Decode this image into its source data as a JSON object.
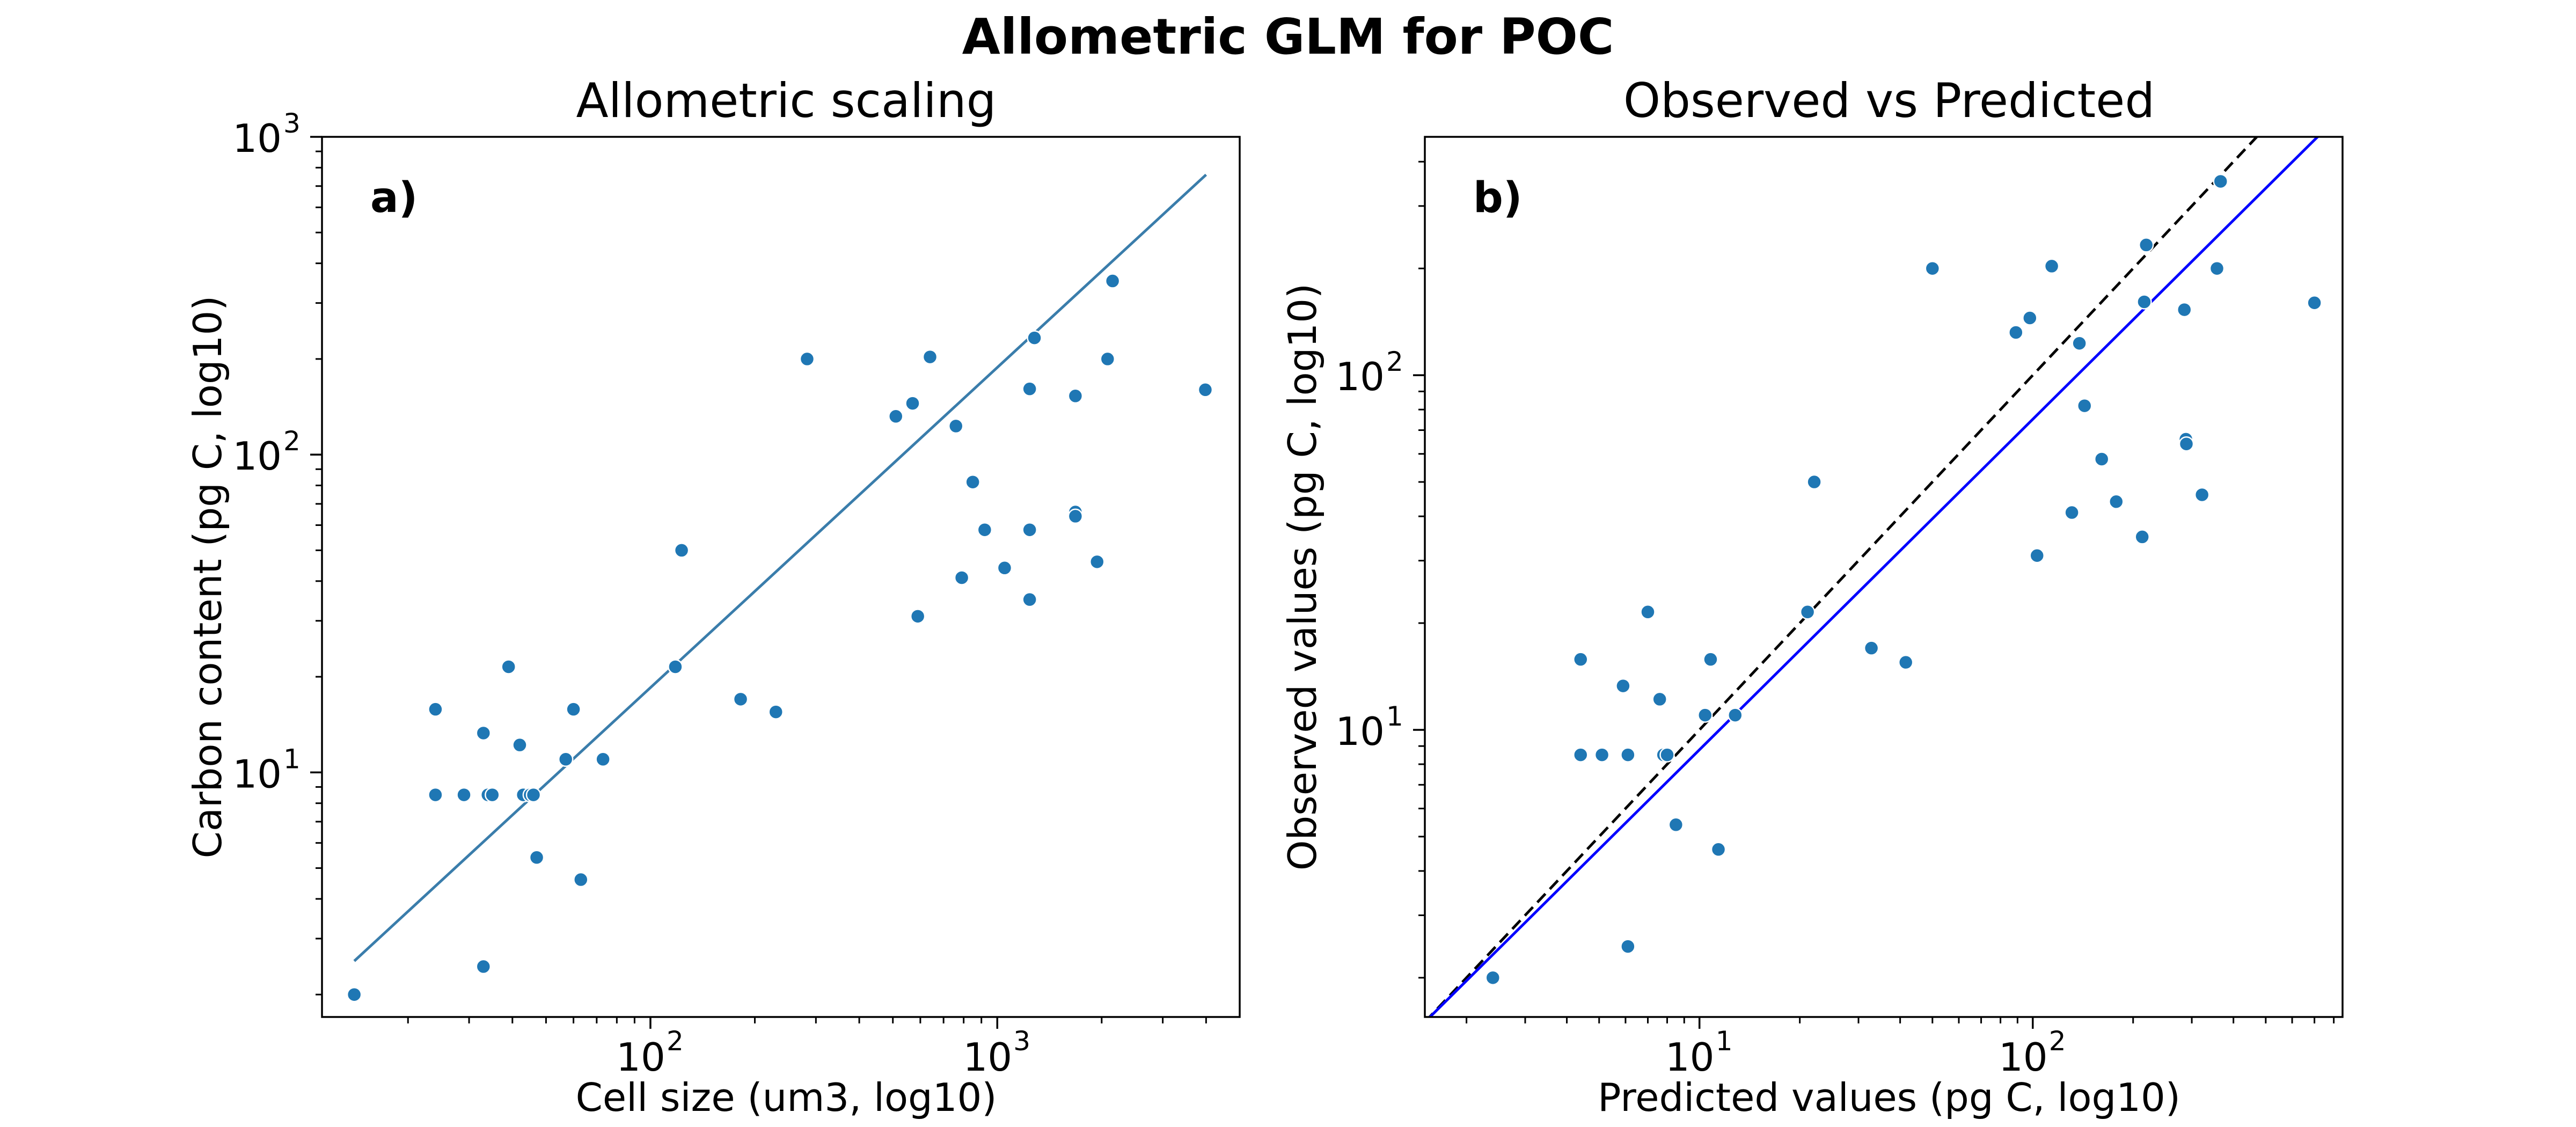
{
  "figure": {
    "suptitle": "Allometric GLM for POC"
  },
  "colors": {
    "points": "#1f77b4",
    "fit_line": "#3a7dab",
    "one_to_one": "#000000",
    "regression": "#0000ff"
  },
  "chart_data": [
    {
      "panel_label": "a)",
      "type": "scatter",
      "title": "Allometric scaling",
      "xlabel": "Cell size (um3, log10)",
      "ylabel": "Carbon content (pg C, log10)",
      "xscale": "log",
      "yscale": "log",
      "xlim": [
        11.3,
        5000
      ],
      "ylim": [
        1.7,
        1000
      ],
      "xticks": [
        {
          "v": 100,
          "label": "10",
          "exp": "2"
        },
        {
          "v": 1000,
          "label": "10",
          "exp": "3"
        }
      ],
      "yticks": [
        {
          "v": 10,
          "label": "10",
          "exp": "1"
        },
        {
          "v": 100,
          "label": "10",
          "exp": "2"
        },
        {
          "v": 1000,
          "label": "10",
          "exp": "3"
        }
      ],
      "grid": false,
      "series": [
        {
          "kind": "points",
          "x": [
            14,
            24,
            24,
            29,
            33,
            33,
            34,
            35,
            39,
            42,
            43,
            45,
            46,
            47,
            57,
            60,
            63,
            73,
            118,
            123,
            182,
            230,
            283,
            510,
            570,
            590,
            640,
            760,
            790,
            850,
            920,
            1050,
            1240,
            1240,
            1240,
            1280,
            1680,
            1680,
            1680,
            1940,
            2080,
            2150,
            3980
          ],
          "y": [
            2,
            8.5,
            15.8,
            8.5,
            13.3,
            2.45,
            8.5,
            8.5,
            21.5,
            12.2,
            8.5,
            8.5,
            8.5,
            5.4,
            11,
            15.8,
            4.6,
            11,
            21.5,
            50,
            17,
            15.5,
            200,
            132,
            145,
            31,
            203,
            123,
            41,
            82,
            58,
            44,
            58,
            35,
            161,
            233,
            66,
            64,
            153,
            46,
            200,
            352,
            160
          ]
        },
        {
          "kind": "line",
          "x": [
            14,
            4000
          ],
          "y": [
            2.55,
            760
          ]
        }
      ]
    },
    {
      "panel_label": "b)",
      "type": "scatter",
      "title": "Observed vs Predicted",
      "xlabel": "Predicted values (pg C, log10)",
      "ylabel": "Observed values (pg C, log10)",
      "xscale": "log",
      "yscale": "log",
      "xlim": [
        1.5,
        850
      ],
      "ylim": [
        1.55,
        470
      ],
      "xticks": [
        {
          "v": 10,
          "label": "10",
          "exp": "1"
        },
        {
          "v": 100,
          "label": "10",
          "exp": "2"
        }
      ],
      "yticks": [
        {
          "v": 10,
          "label": "10",
          "exp": "1"
        },
        {
          "v": 100,
          "label": "10",
          "exp": "2"
        }
      ],
      "grid": false,
      "series": [
        {
          "kind": "points",
          "x": [
            2.4,
            4.4,
            4.4,
            5.1,
            5.9,
            6.1,
            6.1,
            7,
            7.6,
            7.8,
            8,
            8.5,
            10.4,
            10.8,
            11.4,
            12.8,
            21.1,
            22.1,
            32.8,
            41.6,
            50,
            89,
            98,
            103,
            114,
            131,
            138,
            143,
            161,
            178,
            213,
            216,
            219,
            285,
            288,
            289,
            322,
            357,
            366,
            700
          ],
          "y": [
            2,
            8.5,
            15.8,
            8.5,
            13.3,
            2.45,
            8.5,
            21.5,
            12.2,
            8.5,
            8.5,
            5.4,
            11,
            15.8,
            4.6,
            11,
            21.5,
            50,
            17,
            15.5,
            200,
            132,
            145,
            31,
            203,
            41,
            123,
            82,
            58,
            44,
            35,
            161,
            233,
            153,
            66,
            64,
            46,
            200,
            352,
            160
          ]
        },
        {
          "kind": "dashed",
          "name": "1:1",
          "x": [
            1.5,
            470
          ],
          "y": [
            1.5,
            470
          ]
        },
        {
          "kind": "line",
          "x": [
            1.5,
            850
          ],
          "y": [
            1.5,
            552
          ]
        }
      ]
    }
  ]
}
